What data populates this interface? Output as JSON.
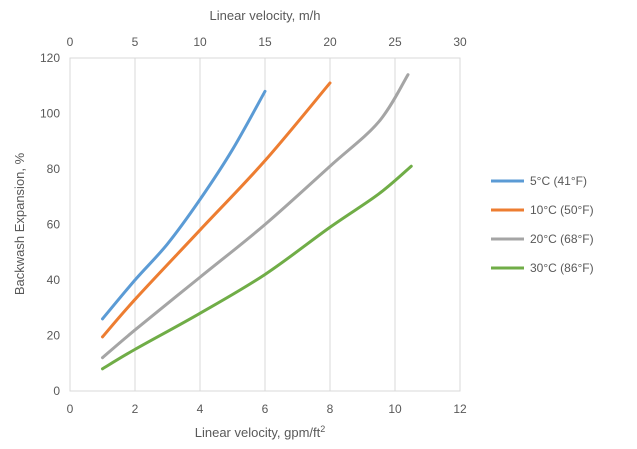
{
  "chart_data": {
    "type": "line",
    "title": "",
    "xlabel": "Linear velocity, gpm/ft",
    "xlabel_sup": "2",
    "ylabel": "Backwash Expansion, %",
    "x2label": "Linear velocity, m/h",
    "xlim": [
      0,
      12
    ],
    "ylim": [
      0,
      120
    ],
    "x2lim": [
      0,
      30
    ],
    "x_ticks": [
      "0",
      "2",
      "4",
      "6",
      "8",
      "10",
      "12"
    ],
    "y_ticks": [
      "0",
      "20",
      "40",
      "60",
      "80",
      "100",
      "120"
    ],
    "x2_ticks": [
      "0",
      "5",
      "10",
      "15",
      "20",
      "25",
      "30"
    ],
    "grid": "vertical",
    "legend_position": "right",
    "series": [
      {
        "name": "5°C (41°F)",
        "color": "#5b9bd5",
        "x": [
          1.0,
          2.0,
          3.0,
          4.0,
          5.0,
          6.0
        ],
        "y": [
          26,
          40,
          53,
          69,
          87,
          108
        ]
      },
      {
        "name": "10°C (50°F)",
        "color": "#ed7d31",
        "x": [
          1.0,
          2.0,
          4.0,
          6.0,
          8.0
        ],
        "y": [
          19.5,
          33,
          58,
          83,
          111
        ]
      },
      {
        "name": "20°C (68°F)",
        "color": "#a5a5a5",
        "x": [
          1.0,
          2.0,
          4.0,
          6.0,
          8.0,
          9.5,
          10.4
        ],
        "y": [
          12,
          22,
          41,
          60,
          81,
          97,
          114
        ]
      },
      {
        "name": "30°C (86°F)",
        "color": "#70ad47",
        "x": [
          1.0,
          2.0,
          4.0,
          6.0,
          8.0,
          9.5,
          10.5
        ],
        "y": [
          8,
          15,
          28,
          42,
          59,
          71,
          81
        ]
      }
    ]
  }
}
